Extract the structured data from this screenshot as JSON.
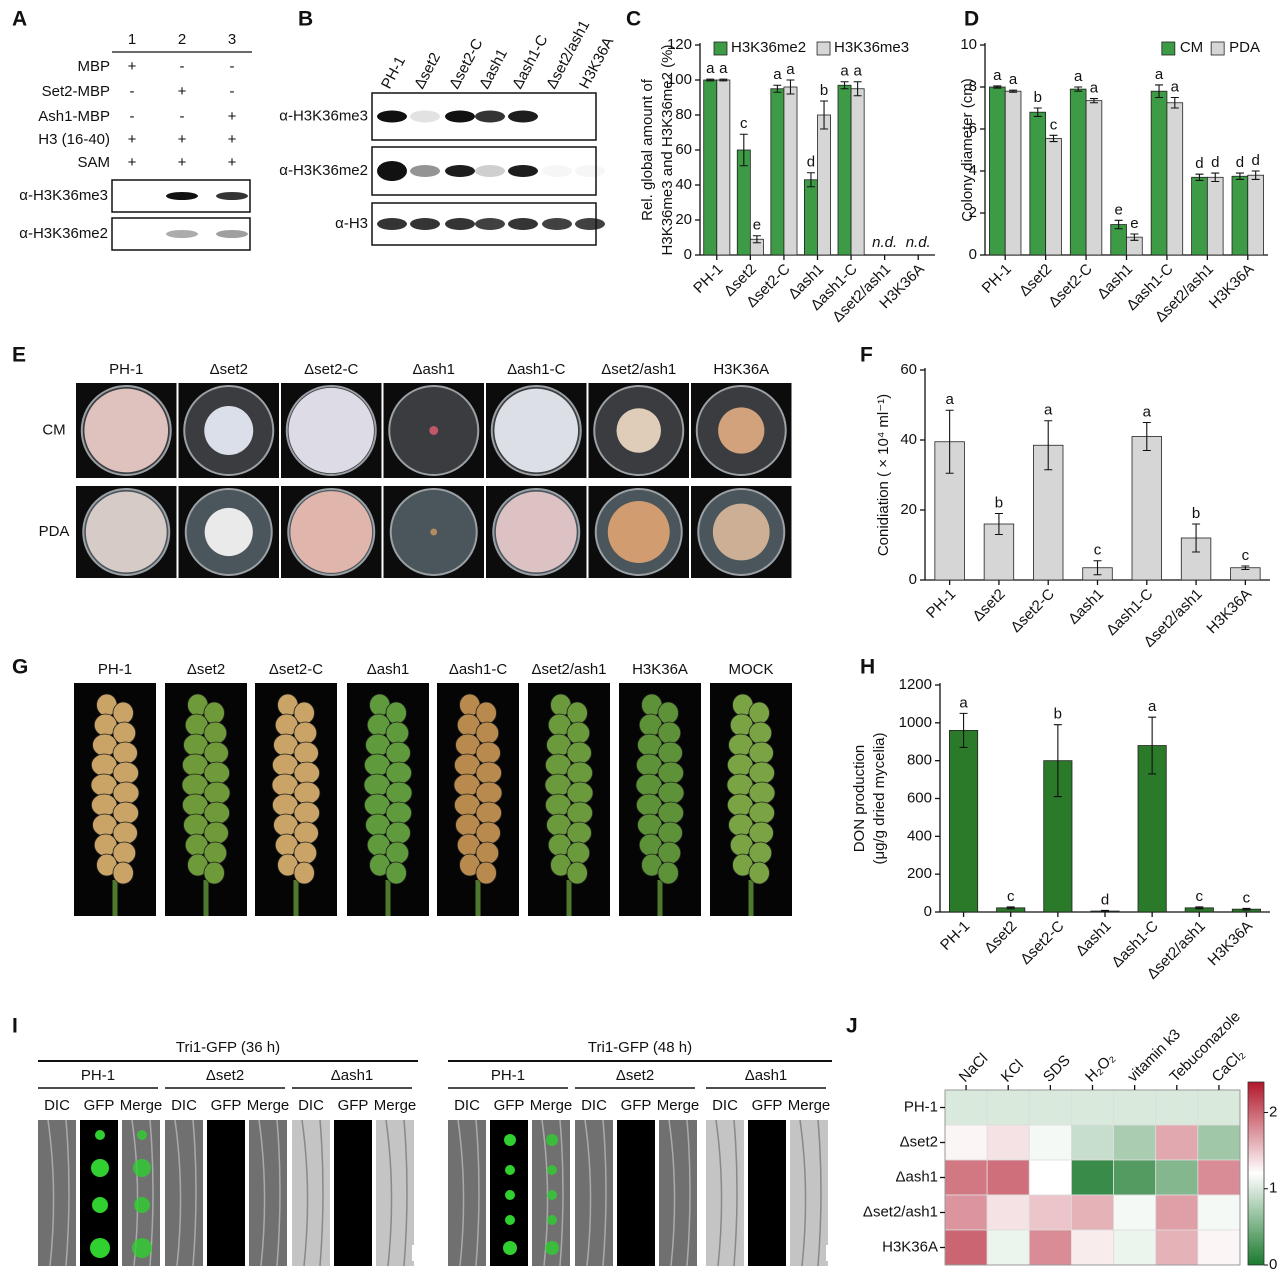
{
  "panel_labels": [
    "A",
    "B",
    "C",
    "D",
    "E",
    "F",
    "G",
    "H",
    "I",
    "J"
  ],
  "panel_a": {
    "lanes": [
      "1",
      "2",
      "3"
    ],
    "rows": [
      {
        "label": "MBP",
        "signs": [
          "+",
          "-",
          "-"
        ]
      },
      {
        "label": "Set2-MBP",
        "signs": [
          "-",
          "+",
          "-"
        ]
      },
      {
        "label": "Ash1-MBP",
        "signs": [
          "-",
          "-",
          "+"
        ]
      },
      {
        "label": "H3 (16-40)",
        "signs": [
          "+",
          "+",
          "+"
        ]
      },
      {
        "label": "SAM",
        "signs": [
          "+",
          "+",
          "+"
        ]
      }
    ],
    "blots": [
      "α-H3K36me3",
      "α-H3K36me2"
    ]
  },
  "panel_b": {
    "lanes": [
      "PH-1",
      "Δset2",
      "Δset2-C",
      "Δash1",
      "Δash1-C",
      "Δset2/ash1",
      "H3K36A"
    ],
    "blots": [
      "α-H3K36me3",
      "α-H3K36me2",
      "α-H3"
    ]
  },
  "panel_e": {
    "columns": [
      "PH-1",
      "Δset2",
      "Δset2-C",
      "Δash1",
      "Δash1-C",
      "Δset2/ash1",
      "H3K36A"
    ],
    "rows": [
      "CM",
      "PDA"
    ]
  },
  "panel_g": {
    "columns": [
      "PH-1",
      "Δset2",
      "Δset2-C",
      "Δash1",
      "Δash1-C",
      "Δset2/ash1",
      "H3K36A",
      "MOCK"
    ]
  },
  "panel_i": {
    "groups": [
      {
        "title": "Tri1-GFP (36 h)",
        "strains": [
          "PH-1",
          "Δset2",
          "Δash1"
        ]
      },
      {
        "title": "Tri1-GFP (48 h)",
        "strains": [
          "PH-1",
          "Δset2",
          "Δash1"
        ]
      }
    ],
    "channels": [
      "DIC",
      "GFP",
      "Merge"
    ]
  },
  "chart_data": [
    {
      "type": "bar",
      "ylabel": [
        "Rel. global amount of",
        "H3K36me3 and H3K36me2 (%)"
      ],
      "categories": [
        "PH-1",
        "Δset2",
        "Δset2-C",
        "Δash1",
        "Δash1-C",
        "Δset2/ash1",
        "H3K36A"
      ],
      "series": [
        {
          "name": "H3K36me2",
          "color": "#3d9a45",
          "values": [
            100,
            60,
            95,
            43,
            97,
            null,
            null
          ],
          "errors": [
            0.5,
            9,
            2,
            4,
            2,
            null,
            null
          ],
          "labels": [
            "a",
            "c",
            "a",
            "d",
            "a",
            null,
            null
          ]
        },
        {
          "name": "H3K36me3",
          "color": "#d6d6d6",
          "values": [
            100,
            9,
            96,
            80,
            95,
            null,
            null
          ],
          "errors": [
            0.5,
            2,
            4,
            8,
            4,
            null,
            null
          ],
          "labels": [
            "a",
            "e",
            "a",
            "b",
            "a",
            null,
            null
          ]
        }
      ],
      "annotations": [
        null,
        null,
        null,
        null,
        null,
        "n.d.",
        "n.d."
      ],
      "ylim": [
        0,
        120
      ],
      "yticks": [
        0,
        20,
        40,
        60,
        80,
        100,
        120
      ],
      "grid": false,
      "legend": "top-left"
    },
    {
      "type": "bar",
      "ylabel": [
        "Colony diameter (cm)"
      ],
      "categories": [
        "PH-1",
        "Δset2",
        "Δset2-C",
        "Δash1",
        "Δash1-C",
        "Δset2/ash1",
        "H3K36A"
      ],
      "series": [
        {
          "name": "CM",
          "color": "#3d9a45",
          "values": [
            8.0,
            6.8,
            7.9,
            1.45,
            7.8,
            3.7,
            3.75
          ],
          "errors": [
            0.05,
            0.2,
            0.1,
            0.2,
            0.3,
            0.15,
            0.15
          ],
          "labels": [
            "a",
            "b",
            "a",
            "e",
            "a",
            "d",
            "d"
          ]
        },
        {
          "name": "PDA",
          "color": "#d6d6d6",
          "values": [
            7.8,
            5.55,
            7.35,
            0.85,
            7.25,
            3.7,
            3.8
          ],
          "errors": [
            0.05,
            0.15,
            0.1,
            0.15,
            0.25,
            0.2,
            0.2
          ],
          "labels": [
            "a",
            "c",
            "a",
            "e",
            "a",
            "d",
            "d"
          ]
        }
      ],
      "ylim": [
        0,
        10
      ],
      "yticks": [
        0,
        2,
        4,
        6,
        8,
        10
      ],
      "grid": false,
      "legend": "top-right"
    },
    {
      "type": "bar",
      "ylabel": [
        "Conidiation ( × 10⁴ ml⁻¹)"
      ],
      "categories": [
        "PH-1",
        "Δset2",
        "Δset2-C",
        "Δash1",
        "Δash1-C",
        "Δset2/ash1",
        "H3K36A"
      ],
      "color": "#d6d6d6",
      "values": [
        39.5,
        16,
        38.5,
        3.5,
        41,
        12,
        3.5
      ],
      "errors": [
        9,
        3,
        7,
        2,
        4,
        4,
        0.5
      ],
      "labels": [
        "a",
        "b",
        "a",
        "c",
        "a",
        "b",
        "c"
      ],
      "ylim": [
        0,
        60
      ],
      "yticks": [
        0,
        20,
        40,
        60
      ],
      "grid": false
    },
    {
      "type": "bar",
      "ylabel": [
        "DON production",
        "(μg/g dried mycelia)"
      ],
      "categories": [
        "PH-1",
        "Δset2",
        "Δset2-C",
        "Δash1",
        "Δash1-C",
        "Δset2/ash1",
        "H3K36A"
      ],
      "color": "#2a7a2a",
      "values": [
        960,
        22,
        800,
        5,
        880,
        22,
        15
      ],
      "errors": [
        90,
        5,
        190,
        3,
        150,
        5,
        4
      ],
      "labels": [
        "a",
        "c",
        "b",
        "d",
        "a",
        "c",
        "c"
      ],
      "ylim": [
        0,
        1200
      ],
      "yticks": [
        0,
        200,
        400,
        600,
        800,
        1000,
        1200
      ],
      "grid": false
    },
    {
      "type": "heatmap",
      "columns": [
        "NaCl",
        "KCl",
        "SDS",
        "H₂O₂",
        "vitamin k3",
        "Tebuconazole",
        "CaCl₂"
      ],
      "rows": [
        "PH-1",
        "Δset2",
        "Δash1",
        "Δset2/ash1",
        "H3K36A"
      ],
      "values": [
        [
          1,
          1,
          1,
          1,
          1,
          1,
          1
        ],
        [
          1.25,
          1.35,
          1.15,
          0.9,
          0.75,
          1.65,
          0.7
        ],
        [
          1.9,
          1.95,
          1.2,
          0.15,
          0.3,
          0.55,
          1.8
        ],
        [
          1.75,
          1.35,
          1.5,
          1.6,
          1.15,
          1.7,
          1.15
        ],
        [
          2.0,
          1.1,
          1.8,
          1.3,
          1.1,
          1.6,
          1.25
        ]
      ],
      "zlim": [
        0,
        2.4
      ],
      "zticks": [
        0,
        1,
        2
      ],
      "colormap": [
        "#1b7a2e",
        "#ffffff",
        "#b2182b"
      ]
    }
  ]
}
